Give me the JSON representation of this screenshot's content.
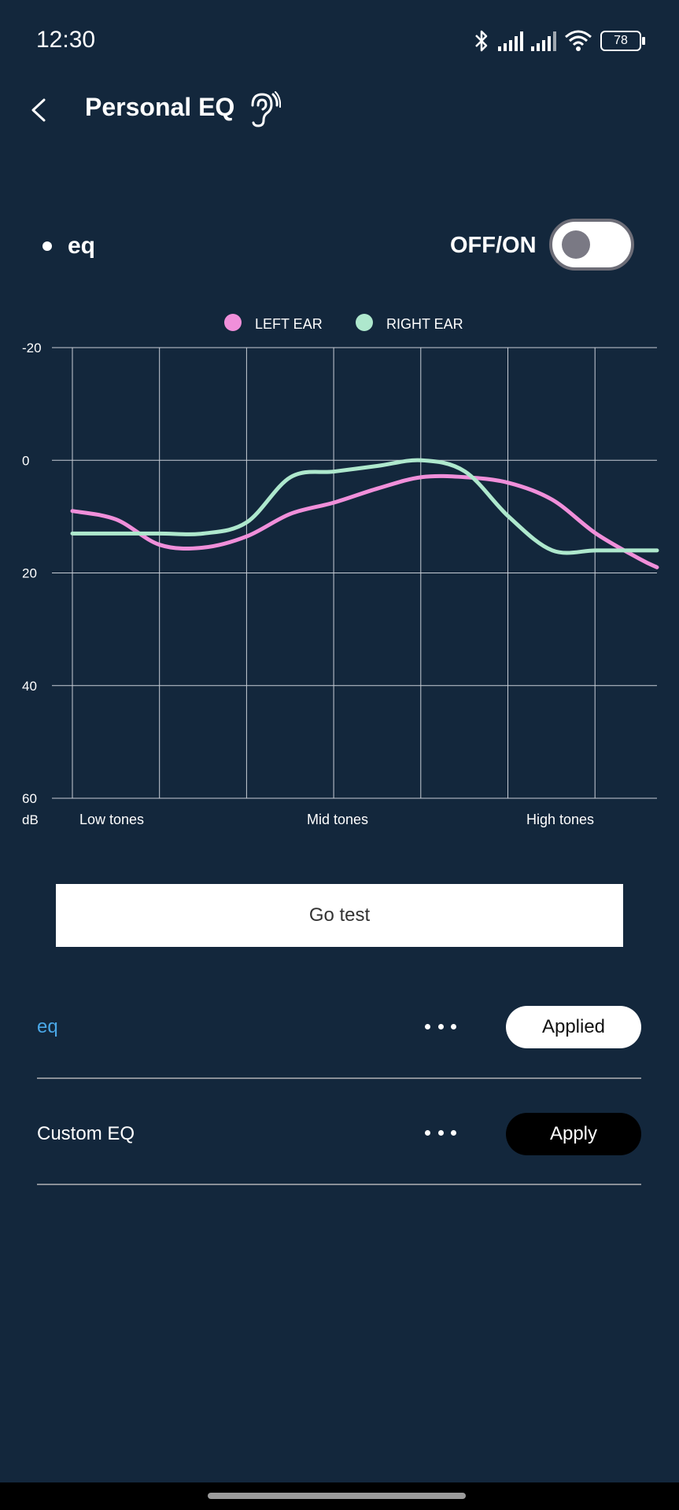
{
  "status_bar": {
    "time": "12:30",
    "battery": "78",
    "icons": [
      "bluetooth-icon",
      "signal-icon",
      "signal-icon",
      "wifi-icon",
      "battery-icon"
    ]
  },
  "header": {
    "title": "Personal EQ",
    "back_icon": "chevron-left-icon",
    "hearing_icon": "ear-icon"
  },
  "eq_toggle": {
    "name": "eq",
    "label": "OFF/ON",
    "state": "off"
  },
  "chart_data": {
    "type": "line",
    "legend_position": "top",
    "series": [
      {
        "name": "LEFT EAR",
        "color": "#f08fda",
        "x": [
          0,
          0.5,
          1,
          1.5,
          2,
          2.5,
          3,
          3.5,
          4,
          4.5,
          5,
          5.5,
          6,
          6.5,
          6.7
        ],
        "values": [
          9,
          10.5,
          15,
          15.5,
          13.5,
          9.5,
          7.5,
          5,
          3,
          3,
          4,
          7,
          13,
          17.5,
          19
        ]
      },
      {
        "name": "RIGHT EAR",
        "color": "#aee8cd",
        "x": [
          0,
          0.5,
          1,
          1.5,
          2,
          2.5,
          3,
          3.5,
          4,
          4.5,
          5,
          5.5,
          6,
          6.5,
          6.7
        ],
        "values": [
          13,
          13,
          13,
          13,
          11,
          3,
          2,
          1,
          0,
          2,
          10,
          16,
          16,
          16,
          16
        ]
      }
    ],
    "x_labels": [
      "Low tones",
      "Mid tones",
      "High tones"
    ],
    "y_ticks": [
      "-20",
      "0",
      "20",
      "40",
      "60"
    ],
    "y_unit": "dB",
    "ylim": [
      -20,
      60
    ],
    "y_inverted": true,
    "grid": true,
    "grid_color": "#c8ced6"
  },
  "go_test": {
    "label": "Go test"
  },
  "presets": [
    {
      "name": "eq",
      "more_icon": "more-horizontal-icon",
      "button": "Applied",
      "active": true,
      "name_color": "#4aa8e8"
    },
    {
      "name": "Custom EQ",
      "more_icon": "more-horizontal-icon",
      "button": "Apply",
      "active": false,
      "name_color": "#ffffff"
    }
  ],
  "colors": {
    "background": "#13273c",
    "accent": "#4aa8e8"
  }
}
